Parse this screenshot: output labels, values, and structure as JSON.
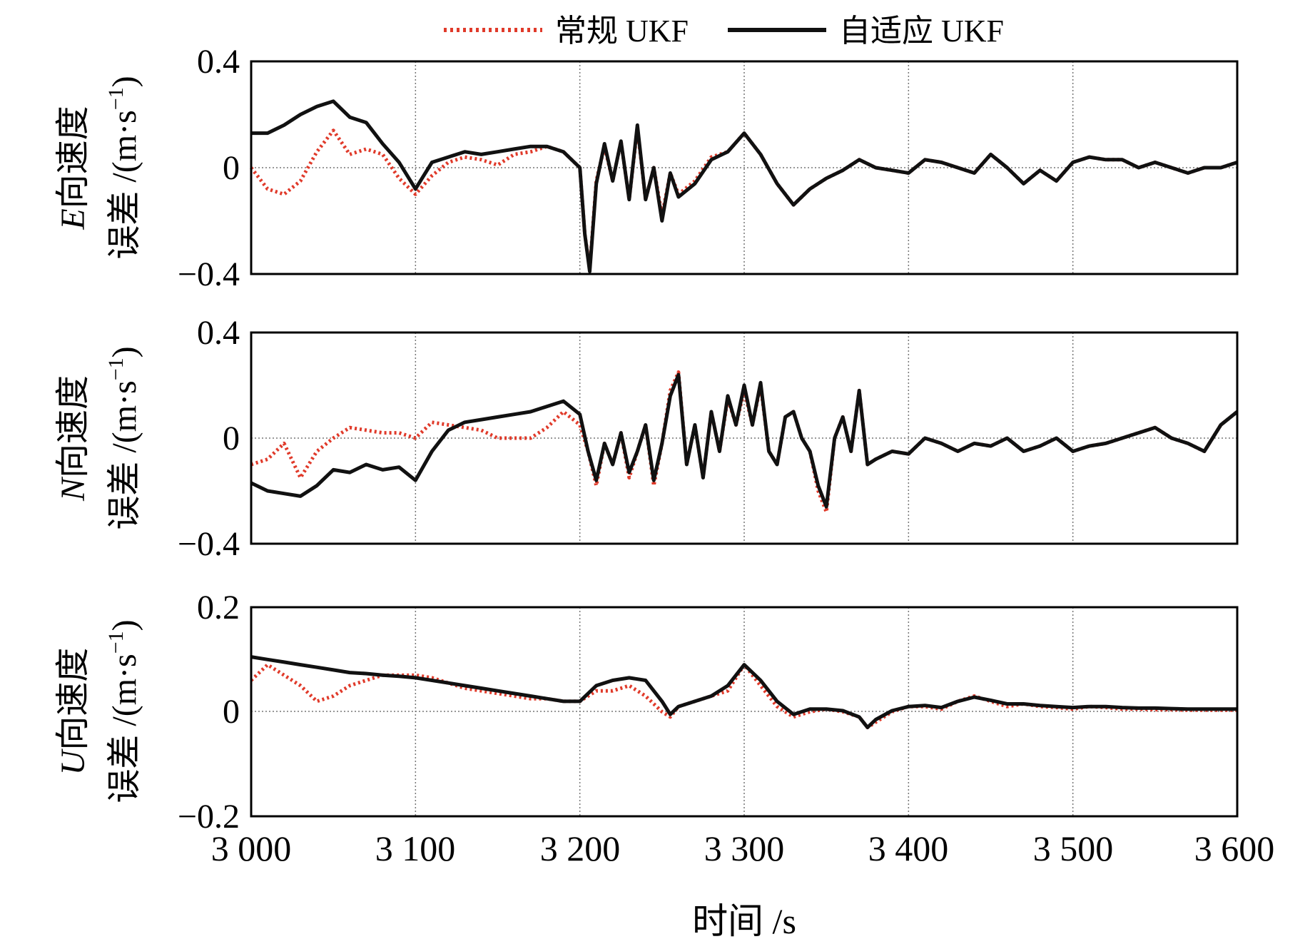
{
  "legend": {
    "items": [
      {
        "label": "常规 UKF",
        "color": "#e03a2a",
        "style": "dotted"
      },
      {
        "label": "自适应 UKF",
        "color": "#111111",
        "style": "solid"
      }
    ]
  },
  "xaxis": {
    "label": "时间 /s",
    "ticks": [
      3000,
      3100,
      3200,
      3300,
      3400,
      3500,
      3600
    ],
    "tick_labels": [
      "3 000",
      "3 100",
      "3 200",
      "3 300",
      "3 400",
      "3 500",
      "3 600"
    ]
  },
  "panels": [
    {
      "ylabel_var": "E",
      "ylabel_text": "向速度",
      "ylabel_line2": "误差 /(m·s",
      "ylabel_exp": "−1",
      "ylabel_close": ")",
      "yticks": [
        "0.4",
        "0",
        "−0.4"
      ]
    },
    {
      "ylabel_var": "N",
      "ylabel_text": "向速度",
      "ylabel_line2": "误差 /(m·s",
      "ylabel_exp": "−1",
      "ylabel_close": ")",
      "yticks": [
        "0.4",
        "0",
        "−0.4"
      ]
    },
    {
      "ylabel_var": "U",
      "ylabel_text": "向速度",
      "ylabel_line2": "误差 /(m·s",
      "ylabel_exp": "−1",
      "ylabel_close": ")",
      "yticks": [
        "0.2",
        "0",
        "−0.2"
      ]
    }
  ],
  "chart_data": [
    {
      "type": "line",
      "xlim": [
        3000,
        3600
      ],
      "ylim": [
        -0.4,
        0.4
      ],
      "grid": true,
      "legend_position": "top-center",
      "x": [
        3000,
        3010,
        3020,
        3030,
        3040,
        3050,
        3060,
        3070,
        3080,
        3090,
        3100,
        3110,
        3120,
        3130,
        3140,
        3150,
        3160,
        3170,
        3180,
        3190,
        3200,
        3203,
        3206,
        3210,
        3215,
        3220,
        3225,
        3230,
        3235,
        3240,
        3245,
        3250,
        3255,
        3260,
        3270,
        3280,
        3290,
        3300,
        3310,
        3320,
        3330,
        3340,
        3350,
        3360,
        3370,
        3380,
        3390,
        3400,
        3410,
        3420,
        3430,
        3440,
        3450,
        3460,
        3470,
        3480,
        3490,
        3500,
        3510,
        3520,
        3530,
        3540,
        3550,
        3560,
        3570,
        3580,
        3590,
        3600
      ],
      "series": [
        {
          "name": "常规 UKF",
          "values": [
            0.0,
            -0.08,
            -0.1,
            -0.05,
            0.06,
            0.14,
            0.05,
            0.07,
            0.05,
            -0.04,
            -0.1,
            -0.03,
            0.02,
            0.04,
            0.03,
            0.01,
            0.05,
            0.06,
            0.08,
            0.06,
            0.0,
            -0.25,
            -0.38,
            -0.05,
            0.08,
            -0.05,
            0.1,
            -0.12,
            0.15,
            -0.12,
            0.0,
            -0.18,
            -0.02,
            -0.1,
            -0.05,
            0.04,
            0.06,
            0.13,
            0.05,
            -0.06,
            -0.14,
            -0.08,
            -0.04,
            -0.01,
            0.03,
            0.0,
            -0.01,
            -0.02,
            0.03,
            0.02,
            0.0,
            -0.02,
            0.05,
            0.0,
            -0.06,
            -0.01,
            -0.05,
            0.02,
            0.04,
            0.03,
            0.03,
            0.0,
            0.02,
            0.0,
            -0.02,
            0.0,
            0.0,
            0.02
          ]
        },
        {
          "name": "自适应 UKF",
          "values": [
            0.13,
            0.13,
            0.16,
            0.2,
            0.23,
            0.25,
            0.19,
            0.17,
            0.09,
            0.02,
            -0.08,
            0.02,
            0.04,
            0.06,
            0.05,
            0.06,
            0.07,
            0.08,
            0.08,
            0.06,
            0.0,
            -0.25,
            -0.39,
            -0.06,
            0.09,
            -0.05,
            0.1,
            -0.12,
            0.16,
            -0.12,
            0.0,
            -0.2,
            -0.02,
            -0.11,
            -0.06,
            0.03,
            0.06,
            0.13,
            0.05,
            -0.06,
            -0.14,
            -0.08,
            -0.04,
            -0.01,
            0.03,
            0.0,
            -0.01,
            -0.02,
            0.03,
            0.02,
            0.0,
            -0.02,
            0.05,
            0.0,
            -0.06,
            -0.01,
            -0.05,
            0.02,
            0.04,
            0.03,
            0.03,
            0.0,
            0.02,
            0.0,
            -0.02,
            0.0,
            0.0,
            0.02
          ]
        }
      ]
    },
    {
      "type": "line",
      "xlim": [
        3000,
        3600
      ],
      "ylim": [
        -0.4,
        0.4
      ],
      "grid": true,
      "x": [
        3000,
        3010,
        3020,
        3030,
        3040,
        3050,
        3060,
        3070,
        3080,
        3090,
        3100,
        3110,
        3120,
        3130,
        3140,
        3150,
        3160,
        3170,
        3180,
        3190,
        3200,
        3205,
        3210,
        3215,
        3220,
        3225,
        3230,
        3235,
        3240,
        3245,
        3250,
        3255,
        3260,
        3265,
        3270,
        3275,
        3280,
        3285,
        3290,
        3295,
        3300,
        3305,
        3310,
        3315,
        3320,
        3325,
        3330,
        3335,
        3340,
        3345,
        3350,
        3355,
        3360,
        3365,
        3370,
        3375,
        3380,
        3390,
        3400,
        3410,
        3420,
        3430,
        3440,
        3450,
        3460,
        3470,
        3480,
        3490,
        3500,
        3510,
        3520,
        3530,
        3540,
        3550,
        3560,
        3570,
        3580,
        3590,
        3600
      ],
      "series": [
        {
          "name": "常规 UKF",
          "values": [
            -0.1,
            -0.08,
            -0.02,
            -0.15,
            -0.05,
            0.0,
            0.04,
            0.03,
            0.02,
            0.02,
            0.0,
            0.06,
            0.05,
            0.04,
            0.03,
            0.0,
            0.0,
            0.0,
            0.04,
            0.1,
            0.05,
            -0.05,
            -0.18,
            -0.02,
            -0.1,
            0.02,
            -0.15,
            -0.05,
            0.05,
            -0.18,
            -0.02,
            0.18,
            0.25,
            -0.1,
            0.05,
            -0.15,
            0.1,
            -0.05,
            0.15,
            0.05,
            0.18,
            0.05,
            0.2,
            -0.05,
            -0.1,
            0.08,
            0.1,
            0.0,
            -0.05,
            -0.2,
            -0.28,
            0.0,
            0.08,
            -0.05,
            0.18,
            -0.1,
            -0.08,
            -0.05,
            -0.06,
            0.0,
            -0.02,
            -0.05,
            -0.02,
            -0.03,
            0.0,
            -0.05,
            -0.03,
            0.0,
            -0.05,
            -0.03,
            -0.02,
            0.0,
            0.02,
            0.04,
            0.0,
            -0.02,
            -0.05,
            0.05,
            0.1
          ]
        },
        {
          "name": "自适应 UKF",
          "values": [
            -0.17,
            -0.2,
            -0.21,
            -0.22,
            -0.18,
            -0.12,
            -0.13,
            -0.1,
            -0.12,
            -0.11,
            -0.16,
            -0.05,
            0.03,
            0.06,
            0.07,
            0.08,
            0.09,
            0.1,
            0.12,
            0.14,
            0.09,
            -0.05,
            -0.16,
            -0.02,
            -0.1,
            0.02,
            -0.13,
            -0.05,
            0.05,
            -0.16,
            -0.02,
            0.16,
            0.24,
            -0.1,
            0.05,
            -0.15,
            0.1,
            -0.05,
            0.16,
            0.05,
            0.2,
            0.05,
            0.21,
            -0.05,
            -0.1,
            0.08,
            0.1,
            0.0,
            -0.05,
            -0.18,
            -0.26,
            0.0,
            0.08,
            -0.05,
            0.18,
            -0.1,
            -0.08,
            -0.05,
            -0.06,
            0.0,
            -0.02,
            -0.05,
            -0.02,
            -0.03,
            0.0,
            -0.05,
            -0.03,
            0.0,
            -0.05,
            -0.03,
            -0.02,
            0.0,
            0.02,
            0.04,
            0.0,
            -0.02,
            -0.05,
            0.05,
            0.1
          ]
        }
      ]
    },
    {
      "type": "line",
      "xlim": [
        3000,
        3600
      ],
      "ylim": [
        -0.2,
        0.2
      ],
      "grid": true,
      "x": [
        3000,
        3010,
        3020,
        3030,
        3040,
        3050,
        3060,
        3070,
        3080,
        3090,
        3100,
        3110,
        3120,
        3130,
        3140,
        3150,
        3160,
        3170,
        3180,
        3190,
        3200,
        3210,
        3220,
        3230,
        3240,
        3250,
        3255,
        3260,
        3270,
        3280,
        3290,
        3300,
        3310,
        3320,
        3330,
        3340,
        3350,
        3360,
        3370,
        3375,
        3380,
        3390,
        3400,
        3410,
        3420,
        3430,
        3440,
        3450,
        3460,
        3470,
        3480,
        3490,
        3500,
        3510,
        3520,
        3530,
        3540,
        3550,
        3560,
        3570,
        3580,
        3590,
        3600
      ],
      "series": [
        {
          "name": "常规 UKF",
          "values": [
            0.06,
            0.09,
            0.07,
            0.05,
            0.02,
            0.03,
            0.05,
            0.06,
            0.07,
            0.07,
            0.07,
            0.065,
            0.055,
            0.045,
            0.04,
            0.035,
            0.03,
            0.025,
            0.025,
            0.02,
            0.02,
            0.04,
            0.04,
            0.05,
            0.03,
            0.0,
            -0.01,
            0.01,
            0.02,
            0.03,
            0.04,
            0.09,
            0.05,
            0.01,
            -0.01,
            0.0,
            0.005,
            0.0,
            -0.01,
            -0.03,
            -0.02,
            0.0,
            0.01,
            0.01,
            0.005,
            0.02,
            0.03,
            0.02,
            0.01,
            0.015,
            0.01,
            0.008,
            0.005,
            0.01,
            0.008,
            0.005,
            0.005,
            0.004,
            0.004,
            0.003,
            0.003,
            0.003,
            0.003
          ]
        },
        {
          "name": "自适应 UKF",
          "values": [
            0.105,
            0.1,
            0.095,
            0.09,
            0.085,
            0.08,
            0.075,
            0.073,
            0.07,
            0.068,
            0.065,
            0.06,
            0.055,
            0.05,
            0.045,
            0.04,
            0.035,
            0.03,
            0.025,
            0.02,
            0.02,
            0.05,
            0.06,
            0.065,
            0.06,
            0.02,
            -0.005,
            0.01,
            0.02,
            0.03,
            0.05,
            0.09,
            0.06,
            0.02,
            -0.005,
            0.005,
            0.005,
            0.002,
            -0.01,
            -0.03,
            -0.015,
            0.002,
            0.01,
            0.012,
            0.008,
            0.02,
            0.028,
            0.022,
            0.015,
            0.015,
            0.012,
            0.01,
            0.008,
            0.01,
            0.01,
            0.008,
            0.007,
            0.007,
            0.006,
            0.005,
            0.005,
            0.005,
            0.005
          ]
        }
      ]
    }
  ]
}
